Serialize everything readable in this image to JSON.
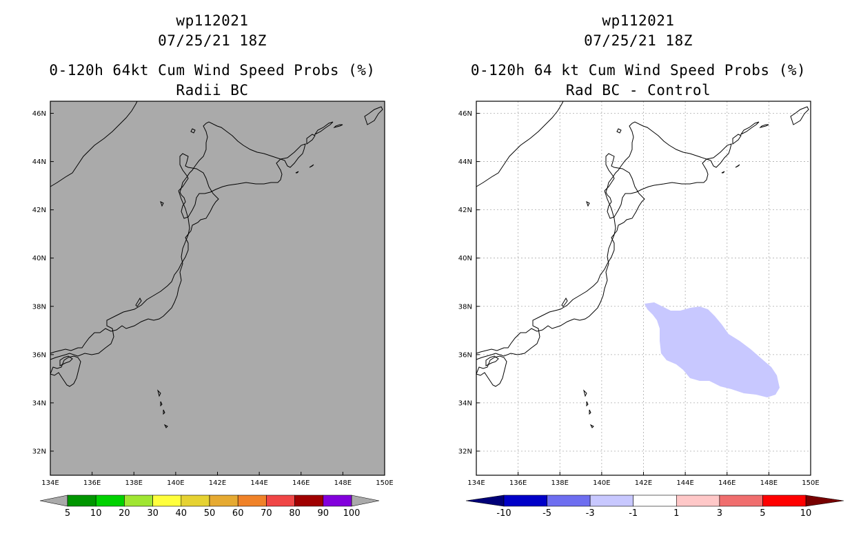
{
  "left_panel": {
    "storm_id": "wp112021",
    "datetime": "07/25/21 18Z",
    "product": "0-120h 64kt Cum Wind Speed Probs (%)",
    "subtitle": "Radii BC",
    "colors": {
      "background": "#aaaaaa"
    },
    "colorbar": {
      "labels": [
        "5",
        "10",
        "20",
        "30",
        "40",
        "50",
        "60",
        "70",
        "80",
        "90",
        "100"
      ],
      "colors": [
        "#009600",
        "#00d200",
        "#a0e632",
        "#ffff3c",
        "#e6d232",
        "#e6aa32",
        "#f08228",
        "#f04646",
        "#a00000",
        "#8200dc"
      ],
      "end_colors": [
        "#aaaaaa",
        "#aaaaaa"
      ]
    }
  },
  "right_panel": {
    "storm_id": "wp112021",
    "datetime": "07/25/21 18Z",
    "product": "0-120h 64 kt Cum Wind Speed Probs (%)",
    "subtitle": "Rad BC - Control",
    "colors": {
      "background": "#ffffff",
      "anomaly_fill": "#c8c8ff",
      "grid": "#aaaaaa"
    },
    "colorbar": {
      "labels": [
        "-10",
        "-5",
        "-3",
        "-1",
        "1",
        "3",
        "5",
        "10"
      ],
      "colors": [
        "#0000c8",
        "#6e6ef0",
        "#c8c8ff",
        "#ffffff",
        "#ffc8c8",
        "#f06e6e",
        "#ff0000"
      ],
      "end_colors": [
        "#000078",
        "#780000"
      ]
    }
  },
  "axes": {
    "lat_labels": [
      "46N",
      "44N",
      "42N",
      "40N",
      "38N",
      "36N",
      "34N",
      "32N"
    ],
    "lon_labels": [
      "134E",
      "136E",
      "138E",
      "140E",
      "142E",
      "144E",
      "146E",
      "148E",
      "150E"
    ],
    "lat_range": [
      31,
      46.5
    ],
    "lon_range": [
      134,
      150
    ]
  }
}
